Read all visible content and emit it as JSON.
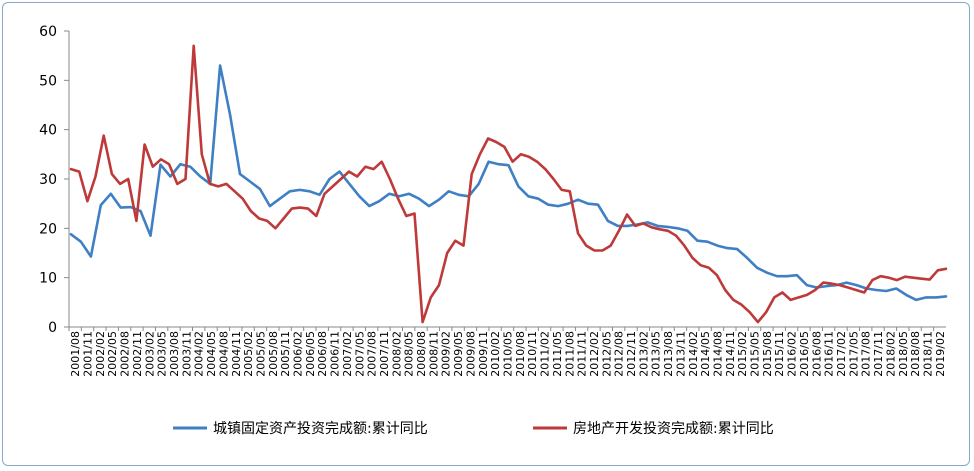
{
  "chart_data": {
    "type": "line",
    "title": "",
    "xlabel": "",
    "ylabel": "",
    "ylim": [
      0,
      60
    ],
    "yticks": [
      0,
      10,
      20,
      30,
      40,
      50,
      60
    ],
    "grid": false,
    "legend_position": "bottom",
    "x_labels": [
      "2001/08",
      "2001/11",
      "2002/02",
      "2002/05",
      "2002/08",
      "2002/11",
      "2003/02",
      "2003/05",
      "2003/08",
      "2003/11",
      "2004/02",
      "2004/05",
      "2004/08",
      "2004/11",
      "2005/02",
      "2005/05",
      "2005/08",
      "2005/11",
      "2006/02",
      "2006/05",
      "2006/08",
      "2006/11",
      "2007/02",
      "2007/05",
      "2007/08",
      "2007/11",
      "2008/02",
      "2008/05",
      "2008/08",
      "2008/11",
      "2009/02",
      "2009/05",
      "2009/08",
      "2009/11",
      "2010/02",
      "2010/05",
      "2010/08",
      "2010/11",
      "2011/02",
      "2011/05",
      "2011/08",
      "2011/11",
      "2012/02",
      "2012/05",
      "2012/08",
      "2012/11",
      "2013/02",
      "2013/05",
      "2013/08",
      "2013/11",
      "2014/02",
      "2014/05",
      "2014/08",
      "2014/11",
      "2015/02",
      "2015/05",
      "2015/08",
      "2015/11",
      "2016/02",
      "2016/05",
      "2016/08",
      "2016/11",
      "2017/02",
      "2017/05",
      "2017/08",
      "2017/11",
      "2018/02",
      "2018/05",
      "2018/08",
      "2018/11",
      "2019/02"
    ],
    "series": [
      {
        "name": "城镇固定资产投资完成额:累计同比",
        "color": "#3f7fc4",
        "points": [
          [
            0,
            18.8
          ],
          [
            1,
            17.3
          ],
          [
            2,
            14.3
          ],
          [
            3,
            24.7
          ],
          [
            4,
            27
          ],
          [
            5,
            24.2
          ],
          [
            6,
            24.3
          ],
          [
            7,
            23.5
          ],
          [
            8,
            18.5
          ],
          [
            9,
            32.9
          ],
          [
            10,
            30.5
          ],
          [
            11,
            33
          ],
          [
            12,
            32.5
          ],
          [
            13,
            30.5
          ],
          [
            14,
            29
          ],
          [
            15,
            53
          ],
          [
            16,
            43
          ],
          [
            17,
            31
          ],
          [
            18,
            29.5
          ],
          [
            19,
            28
          ],
          [
            20,
            24.5
          ],
          [
            21,
            26
          ],
          [
            22,
            27.5
          ],
          [
            23,
            27.8
          ],
          [
            24,
            27.5
          ],
          [
            25,
            26.8
          ],
          [
            26,
            30
          ],
          [
            27,
            31.5
          ],
          [
            28,
            29
          ],
          [
            29,
            26.5
          ],
          [
            30,
            24.5
          ],
          [
            31,
            25.5
          ],
          [
            32,
            27
          ],
          [
            33,
            26.5
          ],
          [
            34,
            27
          ],
          [
            35,
            26
          ],
          [
            36,
            24.5
          ],
          [
            37,
            25.8
          ],
          [
            38,
            27.5
          ],
          [
            39,
            26.8
          ],
          [
            40,
            26.5
          ],
          [
            41,
            29
          ],
          [
            42,
            33.5
          ],
          [
            43,
            33
          ],
          [
            44,
            32.8
          ],
          [
            45,
            28.5
          ],
          [
            46,
            26.5
          ],
          [
            47,
            26
          ],
          [
            48,
            24.8
          ],
          [
            49,
            24.5
          ],
          [
            50,
            25
          ],
          [
            51,
            25.8
          ],
          [
            52,
            25
          ],
          [
            53,
            24.8
          ],
          [
            54,
            21.5
          ],
          [
            55,
            20.5
          ],
          [
            56,
            20.5
          ],
          [
            57,
            20.8
          ],
          [
            58,
            21.2
          ],
          [
            59,
            20.5
          ],
          [
            60,
            20.3
          ],
          [
            61,
            20
          ],
          [
            62,
            19.5
          ],
          [
            63,
            17.5
          ],
          [
            64,
            17.3
          ],
          [
            65,
            16.5
          ],
          [
            66,
            16
          ],
          [
            67,
            15.8
          ],
          [
            68,
            14
          ],
          [
            69,
            12
          ],
          [
            70,
            11
          ],
          [
            71,
            10.3
          ],
          [
            72,
            10.3
          ],
          [
            73,
            10.5
          ],
          [
            74,
            8.5
          ],
          [
            75,
            8
          ],
          [
            76,
            8.3
          ],
          [
            77,
            8.5
          ],
          [
            78,
            9
          ],
          [
            79,
            8.5
          ],
          [
            80,
            7.8
          ],
          [
            81,
            7.5
          ],
          [
            82,
            7.3
          ],
          [
            83,
            7.8
          ],
          [
            84,
            6.5
          ],
          [
            85,
            5.5
          ],
          [
            86,
            6
          ],
          [
            87,
            6
          ],
          [
            88,
            6.2
          ]
        ]
      },
      {
        "name": "房地产开发投资完成额:累计同比",
        "color": "#be3a3a",
        "points": [
          [
            0,
            32
          ],
          [
            1,
            31.5
          ],
          [
            2,
            25.5
          ],
          [
            3,
            30.5
          ],
          [
            4,
            38.8
          ],
          [
            5,
            31
          ],
          [
            6,
            29
          ],
          [
            7,
            30
          ],
          [
            8,
            21.5
          ],
          [
            9,
            37
          ],
          [
            10,
            32.5
          ],
          [
            11,
            34
          ],
          [
            12,
            33
          ],
          [
            13,
            29
          ],
          [
            14,
            30
          ],
          [
            15,
            57
          ],
          [
            16,
            35
          ],
          [
            17,
            29
          ],
          [
            18,
            28.5
          ],
          [
            19,
            29
          ],
          [
            20,
            27.5
          ],
          [
            21,
            26
          ],
          [
            22,
            23.5
          ],
          [
            23,
            22
          ],
          [
            24,
            21.5
          ],
          [
            25,
            20
          ],
          [
            26,
            22
          ],
          [
            27,
            24
          ],
          [
            28,
            24.2
          ],
          [
            29,
            24
          ],
          [
            30,
            22.5
          ],
          [
            31,
            27
          ],
          [
            32,
            28.5
          ],
          [
            33,
            30
          ],
          [
            34,
            31.5
          ],
          [
            35,
            30.5
          ],
          [
            36,
            32.5
          ],
          [
            37,
            32
          ],
          [
            38,
            33.5
          ],
          [
            39,
            30
          ],
          [
            40,
            26
          ],
          [
            41,
            22.5
          ],
          [
            42,
            23
          ],
          [
            43,
            1
          ],
          [
            44,
            6
          ],
          [
            45,
            8.5
          ],
          [
            46,
            15
          ],
          [
            47,
            17.5
          ],
          [
            48,
            16.5
          ],
          [
            49,
            31
          ],
          [
            50,
            35
          ],
          [
            51,
            38.2
          ],
          [
            52,
            37.5
          ],
          [
            53,
            36.5
          ],
          [
            54,
            33.5
          ],
          [
            55,
            35
          ],
          [
            56,
            34.5
          ],
          [
            57,
            33.5
          ],
          [
            58,
            32
          ],
          [
            59,
            30
          ],
          [
            60,
            27.8
          ],
          [
            61,
            27.5
          ],
          [
            62,
            19
          ],
          [
            63,
            16.5
          ],
          [
            64,
            15.5
          ],
          [
            65,
            15.5
          ],
          [
            66,
            16.5
          ],
          [
            67,
            19.5
          ],
          [
            68,
            22.8
          ],
          [
            69,
            20.5
          ],
          [
            70,
            21
          ],
          [
            71,
            20.2
          ],
          [
            72,
            19.8
          ],
          [
            73,
            19.5
          ],
          [
            74,
            18.5
          ],
          [
            75,
            16.5
          ],
          [
            76,
            14
          ],
          [
            77,
            12.5
          ],
          [
            78,
            12
          ],
          [
            79,
            10.5
          ],
          [
            80,
            7.5
          ],
          [
            81,
            5.5
          ],
          [
            82,
            4.5
          ],
          [
            83,
            3
          ],
          [
            84,
            1
          ],
          [
            85,
            3
          ],
          [
            86,
            6
          ],
          [
            87,
            7
          ],
          [
            88,
            5.5
          ],
          [
            89,
            6
          ],
          [
            90,
            6.5
          ],
          [
            91,
            7.5
          ],
          [
            92,
            9
          ],
          [
            93,
            8.8
          ],
          [
            94,
            8.5
          ],
          [
            95,
            8
          ],
          [
            96,
            7.5
          ],
          [
            97,
            7
          ],
          [
            98,
            9.5
          ],
          [
            99,
            10.3
          ],
          [
            100,
            10
          ],
          [
            101,
            9.5
          ],
          [
            102,
            10.2
          ],
          [
            103,
            10
          ],
          [
            104,
            9.8
          ],
          [
            105,
            9.6
          ],
          [
            106,
            11.5
          ],
          [
            107,
            11.8
          ]
        ]
      }
    ]
  }
}
